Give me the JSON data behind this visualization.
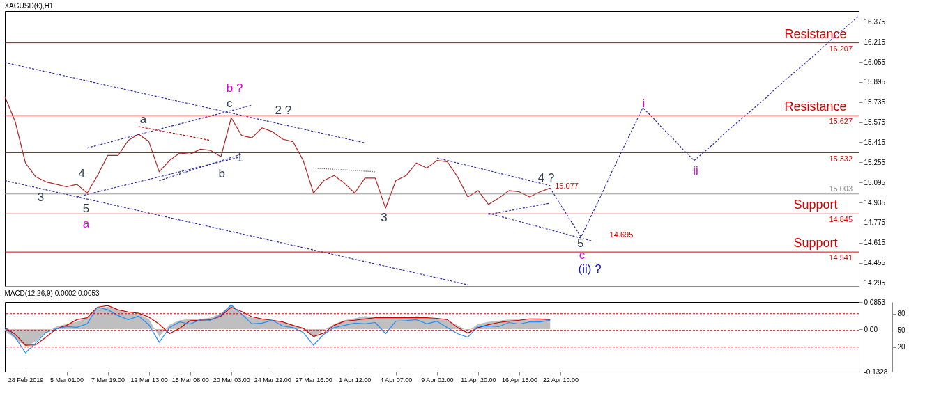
{
  "chart_data": [
    {
      "type": "line",
      "title": "XAGUSD(€),H1",
      "ylim": [
        14.27,
        16.46
      ],
      "tick_labels": "y",
      "grid": false,
      "yticks": [
        14.295,
        14.455,
        14.615,
        14.775,
        14.935,
        15.095,
        15.255,
        15.415,
        15.575,
        15.735,
        15.895,
        16.055,
        16.215,
        16.375
      ],
      "series": [
        {
          "color": "#b22222",
          "values": [
            15.78,
            15.58,
            15.25,
            15.14,
            15.1,
            15.08,
            15.06,
            15.08,
            15.01,
            15.15,
            15.31,
            15.31,
            15.43,
            15.48,
            15.42,
            15.18,
            15.27,
            15.33,
            15.32,
            15.36,
            15.35,
            15.3,
            15.61,
            15.47,
            15.45,
            15.53,
            15.5,
            15.44,
            15.42,
            15.27,
            15.01,
            15.11,
            15.15,
            15.09,
            15.01,
            15.13,
            15.13,
            14.89,
            15.11,
            15.15,
            15.25,
            15.21,
            15.27,
            15.26,
            15.14,
            14.98,
            15.03,
            14.92,
            14.97,
            15.03,
            15.02,
            14.98,
            15.02,
            15.05,
            null,
            null,
            null,
            null,
            null,
            null,
            null,
            null,
            null,
            null,
            null,
            null,
            null,
            null,
            null,
            null,
            null,
            null,
            null,
            null,
            null,
            null,
            null,
            null,
            null,
            null,
            null,
            null,
            null,
            null
          ]
        },
        {
          "color": "#2a2aa5",
          "line_style": "dashed",
          "values": [
            null,
            null,
            null,
            null,
            null,
            null,
            null,
            null,
            null,
            null,
            null,
            null,
            null,
            null,
            null,
            null,
            null,
            null,
            null,
            null,
            null,
            null,
            null,
            null,
            null,
            null,
            null,
            null,
            null,
            null,
            null,
            null,
            null,
            null,
            null,
            null,
            null,
            null,
            null,
            null,
            null,
            null,
            null,
            null,
            null,
            null,
            null,
            null,
            null,
            null,
            null,
            null,
            null,
            15.05,
            14.92,
            14.79,
            14.66,
            14.83,
            15.0,
            15.18,
            15.35,
            15.52,
            15.69,
            15.61,
            15.52,
            15.44,
            15.35,
            15.27,
            15.34,
            15.41,
            15.49,
            15.56,
            15.63,
            15.7,
            15.77,
            15.85,
            15.92,
            15.99,
            16.06,
            16.13,
            16.21,
            16.28,
            16.35,
            16.42
          ]
        },
        {
          "color": "#2a2aa5",
          "line_style": "dashed",
          "values": [
            16.05,
            null,
            null,
            null,
            null,
            null,
            null,
            null,
            null,
            null,
            null,
            null,
            null,
            null,
            null,
            null,
            null,
            null,
            null,
            null,
            null,
            null,
            null,
            null,
            null,
            null,
            null,
            null,
            null,
            null,
            null,
            null,
            null,
            null,
            null,
            15.41,
            null,
            null,
            null,
            null,
            null,
            null,
            null,
            null,
            null,
            null,
            null,
            null,
            null,
            null,
            null,
            null,
            null,
            null,
            null,
            null,
            null,
            null,
            null,
            null,
            null,
            null,
            null,
            null,
            null,
            null,
            null,
            null,
            null,
            null,
            null,
            null,
            null,
            null,
            null,
            null,
            null,
            null,
            null,
            null,
            null,
            null,
            null,
            null
          ]
        },
        {
          "color": "#2a2aa5",
          "line_style": "dashed",
          "values": [
            15.11,
            null,
            null,
            null,
            null,
            null,
            null,
            null,
            null,
            null,
            null,
            null,
            null,
            null,
            null,
            null,
            null,
            null,
            null,
            null,
            null,
            null,
            null,
            null,
            null,
            null,
            null,
            null,
            null,
            null,
            null,
            null,
            null,
            null,
            null,
            null,
            null,
            null,
            null,
            null,
            null,
            null,
            null,
            null,
            null,
            14.28,
            null,
            null,
            null,
            null,
            null,
            null,
            null,
            null,
            null,
            null,
            null,
            null,
            null,
            null,
            null,
            null,
            null,
            null,
            null,
            null,
            null,
            null,
            null,
            null,
            null,
            null,
            null,
            null,
            null,
            null,
            null,
            null,
            null,
            null,
            null,
            null,
            null,
            null
          ]
        },
        {
          "color": "#2a2aa5",
          "line_style": "dashed",
          "values": [
            null,
            null,
            null,
            null,
            null,
            null,
            null,
            null,
            15.37,
            null,
            null,
            null,
            null,
            null,
            null,
            null,
            null,
            null,
            null,
            null,
            null,
            null,
            null,
            null,
            15.71,
            null,
            null,
            null,
            null,
            null,
            null,
            null,
            null,
            null,
            null,
            null,
            null,
            null,
            null,
            null,
            null,
            null,
            null,
            null,
            null,
            null,
            null,
            null,
            null,
            null,
            null,
            null,
            null,
            null,
            null,
            null,
            null,
            null,
            null,
            null,
            null,
            null,
            null,
            null,
            null,
            null,
            null,
            null,
            null,
            null,
            null,
            null,
            null,
            null,
            null,
            null,
            null,
            null,
            null,
            null,
            null,
            null,
            null,
            null
          ]
        },
        {
          "color": "#2a2aa5",
          "line_style": "dashed",
          "values": [
            null,
            null,
            null,
            null,
            null,
            null,
            null,
            14.98,
            null,
            null,
            null,
            null,
            null,
            null,
            null,
            null,
            null,
            null,
            null,
            null,
            null,
            null,
            null,
            15.3,
            null,
            null,
            null,
            null,
            null,
            null,
            null,
            null,
            null,
            null,
            null,
            null,
            null,
            null,
            null,
            null,
            null,
            null,
            null,
            null,
            null,
            null,
            null,
            null,
            null,
            null,
            null,
            null,
            null,
            null,
            null,
            null,
            null,
            null,
            null,
            null,
            null,
            null,
            null,
            null,
            null,
            null,
            null,
            null,
            null,
            null,
            null,
            null,
            null,
            null,
            null,
            null,
            null,
            null,
            null,
            null,
            null,
            null,
            null,
            null
          ]
        },
        {
          "color": "#2a2aa5",
          "line_style": "dashed",
          "values": [
            null,
            null,
            null,
            null,
            null,
            null,
            null,
            null,
            null,
            null,
            null,
            null,
            null,
            null,
            null,
            15.11,
            null,
            null,
            null,
            null,
            null,
            null,
            null,
            15.32,
            null,
            null,
            null,
            null,
            null,
            null,
            null,
            null,
            null,
            null,
            null,
            null,
            null,
            null,
            null,
            null,
            null,
            null,
            null,
            null,
            null,
            null,
            null,
            null,
            null,
            null,
            null,
            null,
            null,
            null,
            null,
            null,
            null,
            null,
            null,
            null,
            null,
            null,
            null,
            null,
            null,
            null,
            null,
            null,
            null,
            null,
            null,
            null,
            null,
            null,
            null,
            null,
            null,
            null,
            null,
            null,
            null,
            null,
            null,
            null
          ]
        },
        {
          "color": "#2a2aa5",
          "line_style": "dashed",
          "values": [
            null,
            null,
            null,
            null,
            null,
            null,
            null,
            null,
            null,
            null,
            null,
            null,
            null,
            null,
            null,
            null,
            null,
            null,
            null,
            null,
            null,
            null,
            null,
            null,
            null,
            null,
            null,
            null,
            null,
            null,
            null,
            null,
            null,
            null,
            null,
            null,
            null,
            null,
            null,
            null,
            null,
            null,
            15.29,
            null,
            null,
            null,
            null,
            null,
            null,
            null,
            null,
            null,
            null,
            15.07,
            null,
            null,
            null,
            null,
            null,
            null,
            null,
            null,
            null,
            null,
            null,
            null,
            null,
            null,
            null,
            null,
            null,
            null,
            null,
            null,
            null,
            null,
            null,
            null,
            null,
            null,
            null,
            null,
            null,
            null
          ]
        },
        {
          "color": "#2a2aa5",
          "line_style": "dashed",
          "values": [
            null,
            null,
            null,
            null,
            null,
            null,
            null,
            null,
            null,
            null,
            null,
            null,
            null,
            null,
            null,
            null,
            null,
            null,
            null,
            null,
            null,
            null,
            null,
            null,
            null,
            null,
            null,
            null,
            null,
            null,
            null,
            null,
            null,
            null,
            null,
            null,
            null,
            null,
            null,
            null,
            null,
            null,
            null,
            null,
            null,
            null,
            null,
            14.85,
            null,
            null,
            null,
            null,
            null,
            null,
            null,
            null,
            null,
            14.63,
            null,
            null,
            null,
            null,
            null,
            null,
            null,
            null,
            null,
            null,
            null,
            null,
            null,
            null,
            null,
            null,
            null,
            null,
            null,
            null,
            null,
            null,
            null,
            null,
            null,
            null
          ]
        },
        {
          "color": "#2a2aa5",
          "line_style": "dashed",
          "values": [
            null,
            null,
            null,
            null,
            null,
            null,
            null,
            null,
            null,
            null,
            null,
            null,
            null,
            null,
            null,
            null,
            null,
            null,
            null,
            null,
            null,
            null,
            null,
            null,
            null,
            null,
            null,
            null,
            null,
            null,
            null,
            null,
            null,
            null,
            null,
            null,
            null,
            null,
            null,
            null,
            null,
            null,
            null,
            null,
            null,
            null,
            null,
            14.84,
            null,
            null,
            null,
            null,
            null,
            14.93,
            null,
            null,
            null,
            null,
            null,
            null,
            null,
            null,
            null,
            null,
            null,
            null,
            null,
            null,
            null,
            null,
            null,
            null,
            null,
            null,
            null,
            null,
            null,
            null,
            null,
            null,
            null,
            null,
            null,
            null
          ]
        },
        {
          "color": "#333333",
          "line_style": "dotted",
          "values": [
            null,
            null,
            null,
            null,
            null,
            null,
            null,
            null,
            null,
            null,
            null,
            null,
            null,
            null,
            null,
            null,
            null,
            null,
            null,
            null,
            null,
            null,
            null,
            null,
            null,
            null,
            null,
            null,
            null,
            null,
            15.21,
            null,
            null,
            null,
            null,
            null,
            15.18,
            null,
            null,
            null,
            null,
            null,
            null,
            null,
            null,
            null,
            null,
            null,
            null,
            null,
            null,
            null,
            null,
            null,
            null,
            null,
            null,
            null,
            null,
            null,
            null,
            null,
            null,
            null,
            null,
            null,
            null,
            null,
            null,
            null,
            null,
            null,
            null,
            null,
            null,
            null,
            null,
            null,
            null,
            null,
            null,
            null,
            null,
            null
          ]
        },
        {
          "color": "#cc0000",
          "line_style": "dashed",
          "values": [
            null,
            null,
            null,
            null,
            null,
            null,
            null,
            null,
            null,
            null,
            null,
            null,
            null,
            15.54,
            null,
            null,
            null,
            null,
            null,
            null,
            15.43,
            null,
            null,
            null,
            null,
            null,
            null,
            null,
            null,
            null,
            null,
            null,
            null,
            null,
            null,
            null,
            null,
            null,
            null,
            null,
            null,
            null,
            null,
            null,
            null,
            null,
            null,
            null,
            null,
            null,
            null,
            null,
            null,
            null,
            null,
            null,
            null,
            null,
            null,
            null,
            null,
            null,
            null,
            null,
            null,
            null,
            null,
            null,
            null,
            null,
            null,
            null,
            null,
            null,
            null,
            null,
            null,
            null,
            null,
            null,
            null,
            null,
            null,
            null
          ]
        }
      ],
      "ref_lines": [
        {
          "axis": "y",
          "value": 16.207,
          "label": "Resistance",
          "color": "#dd0000"
        },
        {
          "axis": "y",
          "value": 15.627,
          "label": "Resistance",
          "color": "#dd0000"
        },
        {
          "axis": "y",
          "value": 15.332,
          "label": null,
          "color": "#dd0000"
        },
        {
          "axis": "y",
          "value": 15.003,
          "label": null,
          "color": "#999999"
        },
        {
          "axis": "y",
          "value": 14.845,
          "label": "Support",
          "color": "#dd0000"
        },
        {
          "axis": "y",
          "value": 14.541,
          "label": "Support",
          "color": "#dd0000"
        }
      ],
      "annotations": [
        "b ?",
        "c",
        "a",
        "2 ?",
        "1",
        "b",
        "4",
        "3",
        "5",
        "a",
        "3",
        "4 ?",
        "5",
        "c",
        "(ii) ?",
        "i",
        "ii",
        "15.077",
        "14.695",
        "16.207",
        "15.627",
        "15.332",
        "15.003",
        "14.845",
        "14.541"
      ]
    },
    {
      "type": "line",
      "title": "MACD(12,26,9) 0.0002 0.0053",
      "ylim": [
        -0.1328,
        0.0853
      ],
      "y2lim": [
        -24,
        101
      ],
      "grid": false,
      "categories": [
        null,
        null,
        "28 Feb 2019",
        null,
        null,
        null,
        "5 Mar 01:00",
        null,
        null,
        null,
        "7 Mar 19:00",
        null,
        null,
        null,
        "12 Mar 13:00",
        null,
        null,
        null,
        "15 Mar 08:00",
        null,
        null,
        null,
        "20 Mar 03:00",
        null,
        null,
        null,
        "24 Mar 22:00",
        null,
        null,
        null,
        "27 Mar 16:00",
        null,
        null,
        null,
        "1 Apr 12:00",
        null,
        null,
        null,
        "4 Apr 07:00",
        null,
        null,
        null,
        "9 Apr 02:00",
        null,
        null,
        null,
        "11 Apr 20:00",
        null,
        null,
        null,
        "16 Apr 15:00",
        null,
        null,
        null,
        "22 Apr 10:00",
        null,
        null,
        null,
        null,
        null,
        null,
        null,
        null,
        null,
        null,
        null,
        null,
        null,
        null,
        null,
        null,
        null,
        null,
        null,
        null,
        null,
        null,
        null,
        null,
        null,
        null,
        null,
        null,
        null
      ],
      "yticks": [
        0.0853,
        {
          "value": 0,
          "label": "0.00"
        },
        -0.1328
      ],
      "y2ticks": [
        80,
        50,
        20
      ],
      "series": [
        {
          "type": "area",
          "color": "#b8b8b8",
          "values": [
            -0.005,
            -0.03,
            -0.054,
            -0.039,
            -0.01,
            0.008,
            0.016,
            0.023,
            0.036,
            0.065,
            0.07,
            0.061,
            0.05,
            0.047,
            0.032,
            -0.023,
            0.014,
            0.028,
            0.032,
            0.032,
            0.036,
            0.05,
            0.078,
            0.048,
            0.036,
            0.032,
            0.028,
            0.021,
            0.014,
            0.001,
            -0.025,
            -0.003,
            0.016,
            0.028,
            0.034,
            0.041,
            0.034,
            0.038,
            0.038,
            0.036,
            0.041,
            0.036,
            0.032,
            0.028,
            0.012,
            -0.006,
            0.016,
            0.023,
            0.027,
            0.03,
            0.03,
            0.028,
            0.032,
            0.03,
            null,
            null,
            null,
            null,
            null,
            null,
            null,
            null,
            null,
            null,
            null,
            null,
            null,
            null,
            null,
            null,
            null,
            null,
            null,
            null,
            null,
            null,
            null,
            null,
            null,
            null,
            null,
            null,
            null,
            null
          ]
        },
        {
          "color": "#cc0000",
          "values": [
            0.005,
            -0.016,
            -0.05,
            -0.049,
            -0.025,
            0.001,
            0.012,
            0.03,
            0.036,
            0.069,
            0.074,
            0.061,
            0.054,
            0.05,
            0.038,
            0.016,
            -0.014,
            0.003,
            0.027,
            0.028,
            0.03,
            0.041,
            0.069,
            0.056,
            0.039,
            0.032,
            0.028,
            0.023,
            0.012,
            0.003,
            -0.023,
            -0.012,
            0.012,
            0.025,
            0.028,
            0.032,
            0.036,
            0.036,
            0.036,
            0.036,
            0.036,
            0.036,
            0.034,
            0.03,
            0.005,
            -0.012,
            0.005,
            0.014,
            0.021,
            0.025,
            0.028,
            0.032,
            0.032,
            0.03,
            null,
            null,
            null,
            null,
            null,
            null,
            null,
            null,
            null,
            null,
            null,
            null,
            null,
            null,
            null,
            null,
            null,
            null,
            null,
            null,
            null,
            null,
            null,
            null,
            null,
            null,
            null,
            null,
            null,
            null
          ]
        },
        {
          "color": "#1e90ff",
          "values": [
            0.005,
            -0.025,
            -0.074,
            -0.043,
            -0.01,
            0.001,
            0.008,
            0.006,
            0.017,
            0.069,
            0.061,
            0.043,
            0.03,
            0.041,
            0.014,
            -0.041,
            0.005,
            0.023,
            0.016,
            0.03,
            0.028,
            0.045,
            0.076,
            0.048,
            0.017,
            0.019,
            0.028,
            0.01,
            0.005,
            -0.01,
            -0.05,
            -0.016,
            0.005,
            0.012,
            0.019,
            0.017,
            0.021,
            -0.014,
            0.025,
            0.027,
            0.03,
            0.017,
            0.025,
            0.005,
            -0.014,
            -0.025,
            0.01,
            0.01,
            0.008,
            0.021,
            0.016,
            0.023,
            0.023,
            0.028,
            null,
            null,
            null,
            null,
            null,
            null,
            null,
            null,
            null,
            null,
            null,
            null,
            null,
            null,
            null,
            null,
            null,
            null,
            null,
            null,
            null,
            null,
            null,
            null,
            null,
            null,
            null,
            null,
            null,
            null
          ]
        }
      ],
      "ref_lines": [
        {
          "axis": "y2",
          "value": 80,
          "label": null,
          "color": "#cc0000",
          "line_style": "dashed"
        },
        {
          "axis": "y2",
          "value": 50,
          "label": null,
          "color": "#cc0000",
          "line_style": "dashed"
        },
        {
          "axis": "y2",
          "value": 20,
          "label": null,
          "color": "#cc0000",
          "line_style": "dashed"
        }
      ]
    }
  ]
}
